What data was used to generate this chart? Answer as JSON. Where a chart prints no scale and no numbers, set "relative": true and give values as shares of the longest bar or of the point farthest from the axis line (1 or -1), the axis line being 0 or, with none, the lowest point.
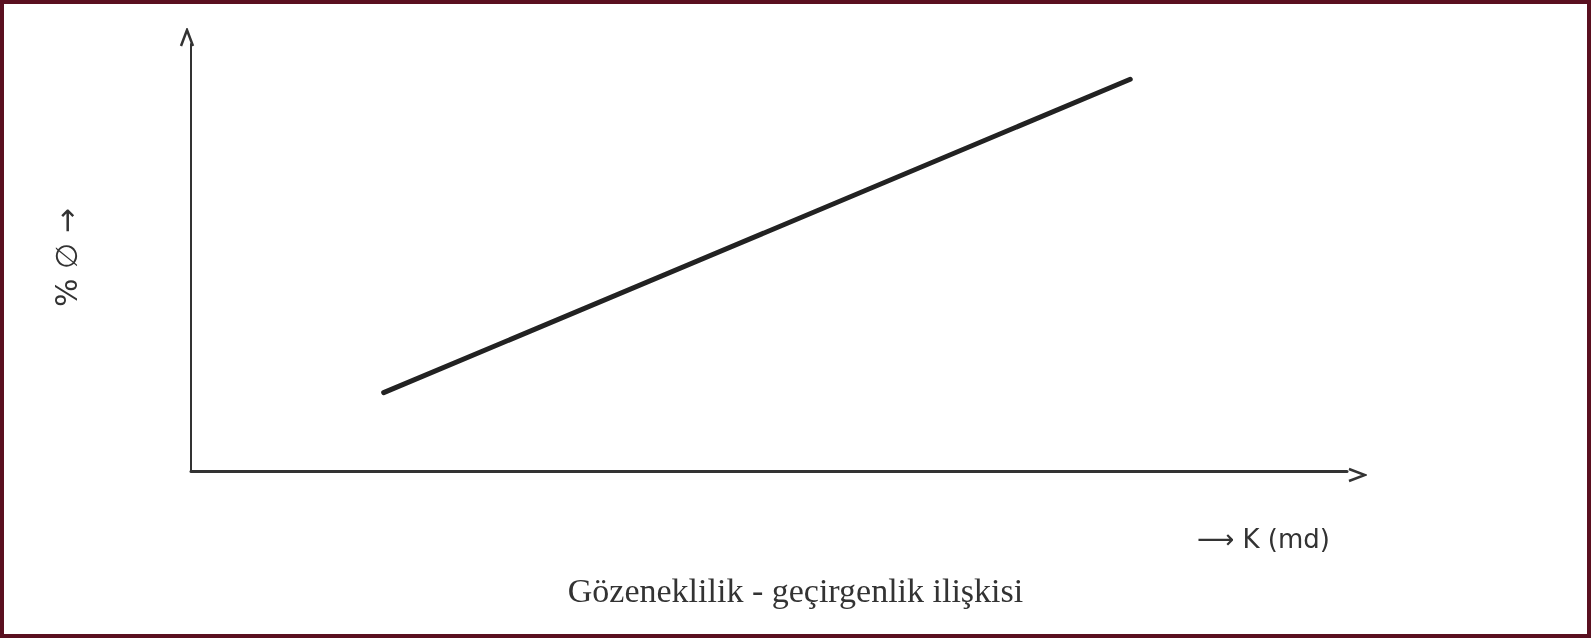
{
  "chart_data": {
    "type": "line",
    "title": "Gözeneklilik - geçirgenlik ilişkisi",
    "xlabel": "⟶ K (md)",
    "ylabel": "% ∅ →",
    "relative": true,
    "marker": "none",
    "line_style": "solid",
    "grid": false,
    "categories": [
      null,
      null,
      null,
      null,
      null,
      null,
      null,
      null,
      null,
      null,
      null,
      null,
      null,
      null,
      null,
      null,
      null,
      null,
      null,
      null,
      null,
      null,
      null,
      null,
      null,
      null,
      null,
      null,
      null,
      null,
      null,
      null,
      null,
      null,
      null,
      null,
      null,
      null,
      null,
      null,
      null,
      null,
      null,
      null,
      null,
      null,
      null,
      null,
      null
    ],
    "series": [
      {
        "color": "#222222",
        "values": [
          null,
          null,
          null,
          null,
          null,
          null,
          null,
          null,
          0.2,
          null,
          null,
          null,
          null,
          null,
          null,
          null,
          null,
          null,
          null,
          null,
          null,
          null,
          null,
          null,
          null,
          null,
          null,
          null,
          null,
          null,
          null,
          null,
          null,
          null,
          null,
          null,
          null,
          null,
          null,
          1,
          null,
          null,
          null,
          null,
          null,
          null,
          null,
          null,
          null
        ]
      }
    ]
  }
}
